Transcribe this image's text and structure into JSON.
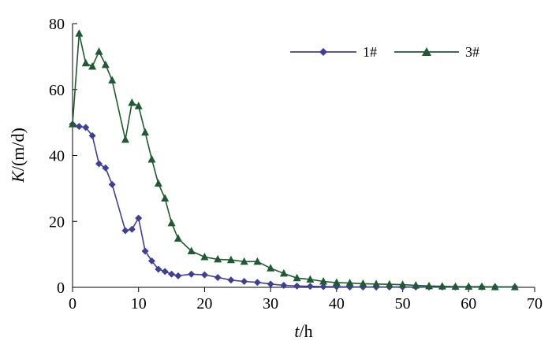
{
  "chart_data": {
    "type": "line",
    "xlabel": {
      "italic": "t",
      "rest": "/h"
    },
    "ylabel": {
      "italic": "K",
      "rest": "/(m/d)"
    },
    "xlim": [
      0,
      70
    ],
    "ylim": [
      0,
      80
    ],
    "xticks": [
      "0",
      "10",
      "20",
      "30",
      "40",
      "50",
      "60",
      "70"
    ],
    "yticks": [
      "0",
      "20",
      "40",
      "60",
      "80"
    ],
    "grid": false,
    "legend_position": "top-right",
    "series": [
      {
        "name": "1#",
        "color": "#3f3f9a",
        "marker": "diamond",
        "points": [
          [
            0,
            49.5
          ],
          [
            1,
            48.8
          ],
          [
            2,
            48.5
          ],
          [
            3,
            46.0
          ],
          [
            4,
            37.5
          ],
          [
            5,
            36.2
          ],
          [
            6,
            31.2
          ],
          [
            8,
            17.2
          ],
          [
            9,
            17.6
          ],
          [
            10,
            21.0
          ],
          [
            11,
            11.0
          ],
          [
            12,
            8.0
          ],
          [
            13,
            5.5
          ],
          [
            14,
            4.8
          ],
          [
            15,
            4.0
          ],
          [
            16,
            3.5
          ],
          [
            18,
            4.0
          ],
          [
            20,
            3.8
          ],
          [
            22,
            3.0
          ],
          [
            24,
            2.2
          ],
          [
            26,
            1.8
          ],
          [
            28,
            1.5
          ],
          [
            30,
            1.0
          ],
          [
            32,
            0.6
          ],
          [
            34,
            0.4
          ],
          [
            36,
            0.3
          ],
          [
            38,
            0.2
          ],
          [
            40,
            0.2
          ],
          [
            42,
            0.1
          ],
          [
            44,
            0.1
          ],
          [
            46,
            0.1
          ],
          [
            48,
            0.1
          ],
          [
            50,
            0.1
          ],
          [
            52,
            0.1
          ],
          [
            54,
            0.1
          ],
          [
            56,
            0.1
          ],
          [
            58,
            0.1
          ],
          [
            60,
            0.1
          ],
          [
            62,
            0.1
          ],
          [
            64,
            0.1
          ],
          [
            67,
            0.1
          ]
        ]
      },
      {
        "name": "3#",
        "color": "#1e5a32",
        "marker": "triangle",
        "points": [
          [
            0,
            49.5
          ],
          [
            1,
            77.0
          ],
          [
            2,
            68.0
          ],
          [
            3,
            67.0
          ],
          [
            4,
            71.5
          ],
          [
            5,
            67.5
          ],
          [
            6,
            62.8
          ],
          [
            8,
            44.8
          ],
          [
            9,
            56.0
          ],
          [
            10,
            55.0
          ],
          [
            11,
            47.0
          ],
          [
            12,
            38.8
          ],
          [
            13,
            31.5
          ],
          [
            14,
            27.0
          ],
          [
            15,
            19.5
          ],
          [
            16,
            14.8
          ],
          [
            18,
            11.0
          ],
          [
            20,
            9.2
          ],
          [
            22,
            8.5
          ],
          [
            24,
            8.3
          ],
          [
            26,
            7.8
          ],
          [
            28,
            7.8
          ],
          [
            30,
            5.8
          ],
          [
            32,
            4.2
          ],
          [
            34,
            2.8
          ],
          [
            36,
            2.4
          ],
          [
            38,
            1.8
          ],
          [
            40,
            1.4
          ],
          [
            42,
            1.3
          ],
          [
            44,
            1.1
          ],
          [
            46,
            1.0
          ],
          [
            48,
            0.9
          ],
          [
            50,
            0.8
          ],
          [
            52,
            0.6
          ],
          [
            54,
            0.4
          ],
          [
            56,
            0.3
          ],
          [
            58,
            0.2
          ],
          [
            60,
            0.2
          ],
          [
            62,
            0.2
          ],
          [
            64,
            0.1
          ],
          [
            67,
            0.1
          ]
        ]
      }
    ]
  }
}
